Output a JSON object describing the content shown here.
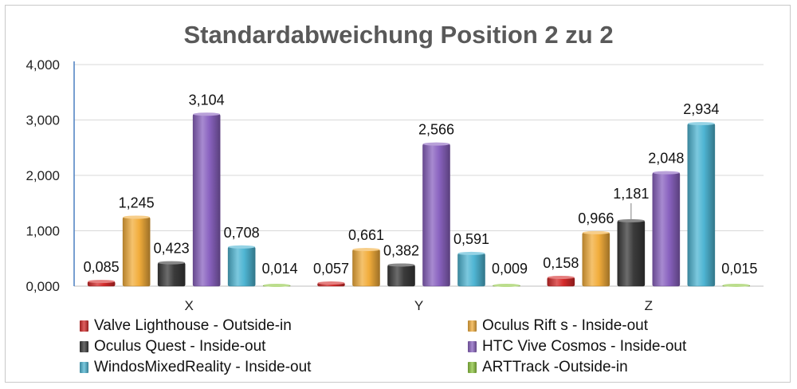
{
  "chart_data": {
    "type": "bar",
    "title": "Standardabweichung Position 2 zu 2",
    "categories": [
      "X",
      "Y",
      "Z"
    ],
    "ylim": [
      0,
      4
    ],
    "yticks": [
      0,
      1,
      2,
      3,
      4
    ],
    "ytick_labels": [
      "0,000",
      "1,000",
      "2,000",
      "3,000",
      "4,000"
    ],
    "grid": true,
    "legend_position": "bottom",
    "series": [
      {
        "name": "Valve Lighthouse - Outside-in",
        "color": "#d42a2a",
        "values": [
          0.085,
          0.057,
          0.158
        ],
        "labels": [
          "0,085",
          "0,057",
          "0,158"
        ]
      },
      {
        "name": "Oculus Rift s - Inside-out",
        "color": "#f2ad3c",
        "values": [
          1.245,
          0.661,
          0.966
        ],
        "labels": [
          "1,245",
          "0,661",
          "0,966"
        ]
      },
      {
        "name": "Oculus Quest - Inside-out",
        "color": "#3b3b3b",
        "values": [
          0.423,
          0.382,
          1.181
        ],
        "labels": [
          "0,423",
          "0,382",
          "1,181"
        ]
      },
      {
        "name": "HTC Vive Cosmos - Inside-out",
        "color": "#8a63c0",
        "values": [
          3.104,
          2.566,
          2.048
        ],
        "labels": [
          "3,104",
          "2,566",
          "2,048"
        ]
      },
      {
        "name": "WindosMixedReality - Inside-out",
        "color": "#4fb5d3",
        "values": [
          0.708,
          0.591,
          2.934
        ],
        "labels": [
          "0,708",
          "0,591",
          "2,934"
        ]
      },
      {
        "name": "ARTTrack -Outside-in",
        "color": "#8dc63f",
        "values": [
          0.014,
          0.009,
          0.015
        ],
        "labels": [
          "0,014",
          "0,009",
          "0,015"
        ]
      }
    ]
  }
}
